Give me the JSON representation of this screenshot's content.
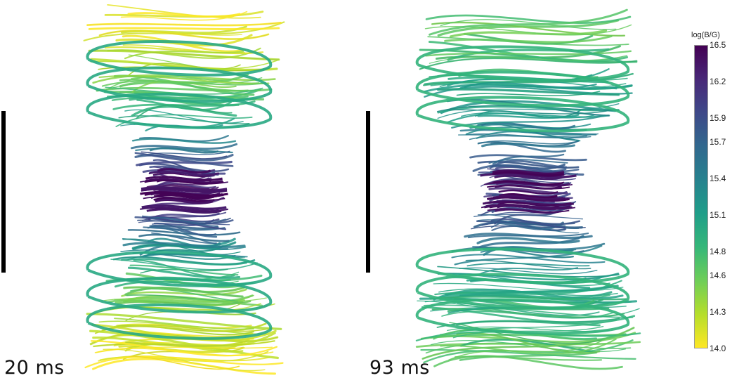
{
  "panels": [
    {
      "time_label": "20 ms"
    },
    {
      "time_label": "93 ms"
    }
  ],
  "colorbar": {
    "title": "log(B/G)",
    "ticks": [
      "16.5",
      "16.2",
      "15.9",
      "15.7",
      "15.4",
      "15.1",
      "14.8",
      "14.6",
      "14.3",
      "14.0"
    ],
    "min": 14.0,
    "max": 16.5,
    "colormap": [
      "#fde725",
      "#b5de2b",
      "#6ece58",
      "#35b779",
      "#1f9e89",
      "#26828e",
      "#31688e",
      "#3e4989",
      "#482878",
      "#440154"
    ]
  }
}
